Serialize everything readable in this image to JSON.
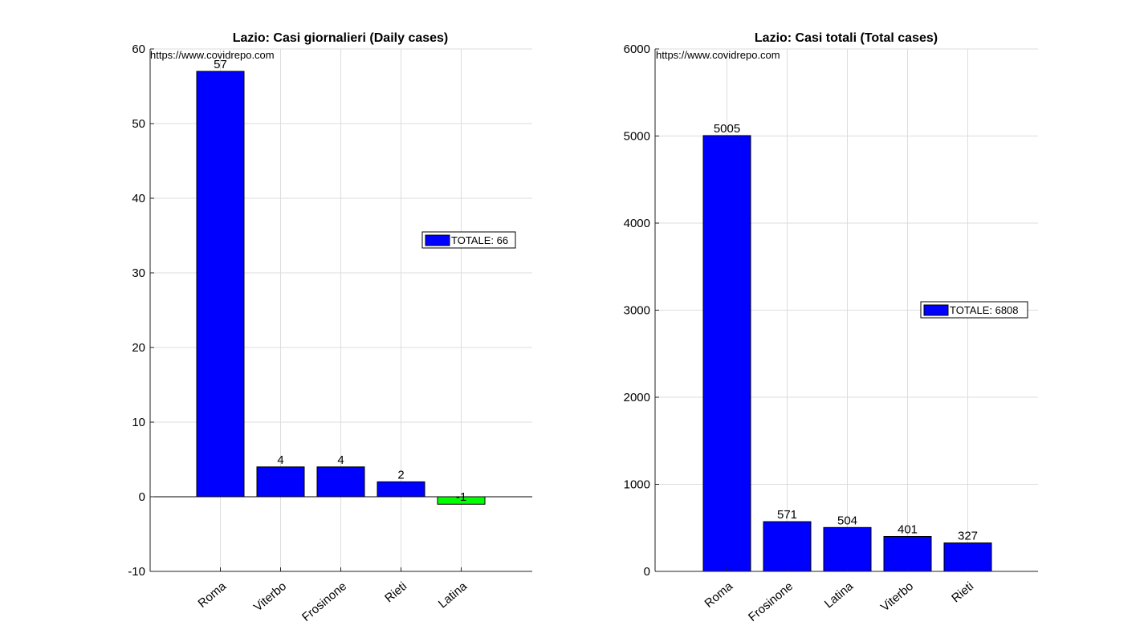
{
  "chart_data": [
    {
      "type": "bar",
      "title": "Lazio: Casi giornalieri (Daily cases)",
      "watermark": "https://www.covidrepo.com",
      "categories": [
        "Roma",
        "Viterbo",
        "Frosinone",
        "Rieti",
        "Latina"
      ],
      "values": [
        57,
        4,
        4,
        2,
        -1
      ],
      "bar_colors": [
        "#0000ff",
        "#0000ff",
        "#0000ff",
        "#0000ff",
        "#00ff00"
      ],
      "value_labels": [
        "57",
        "4",
        "4",
        "2",
        "-1"
      ],
      "ylim": [
        -10,
        60
      ],
      "yticks": [
        "-10",
        "0",
        "10",
        "20",
        "30",
        "40",
        "50",
        "60"
      ],
      "grid": true,
      "legend": {
        "label": "TOTALE: 66",
        "color": "#0000ff",
        "placement": "right"
      }
    },
    {
      "type": "bar",
      "title": "Lazio: Casi totali (Total cases)",
      "watermark": "https://www.covidrepo.com",
      "categories": [
        "Roma",
        "Frosinone",
        "Latina",
        "Viterbo",
        "Rieti"
      ],
      "values": [
        5005,
        571,
        504,
        401,
        327
      ],
      "bar_colors": [
        "#0000ff",
        "#0000ff",
        "#0000ff",
        "#0000ff",
        "#0000ff"
      ],
      "value_labels": [
        "5005",
        "571",
        "504",
        "401",
        "327"
      ],
      "ylim": [
        0,
        6000
      ],
      "yticks": [
        "0",
        "1000",
        "2000",
        "3000",
        "4000",
        "5000",
        "6000"
      ],
      "grid": true,
      "legend": {
        "label": "TOTALE: 6808",
        "color": "#0000ff",
        "placement": "right"
      }
    }
  ]
}
